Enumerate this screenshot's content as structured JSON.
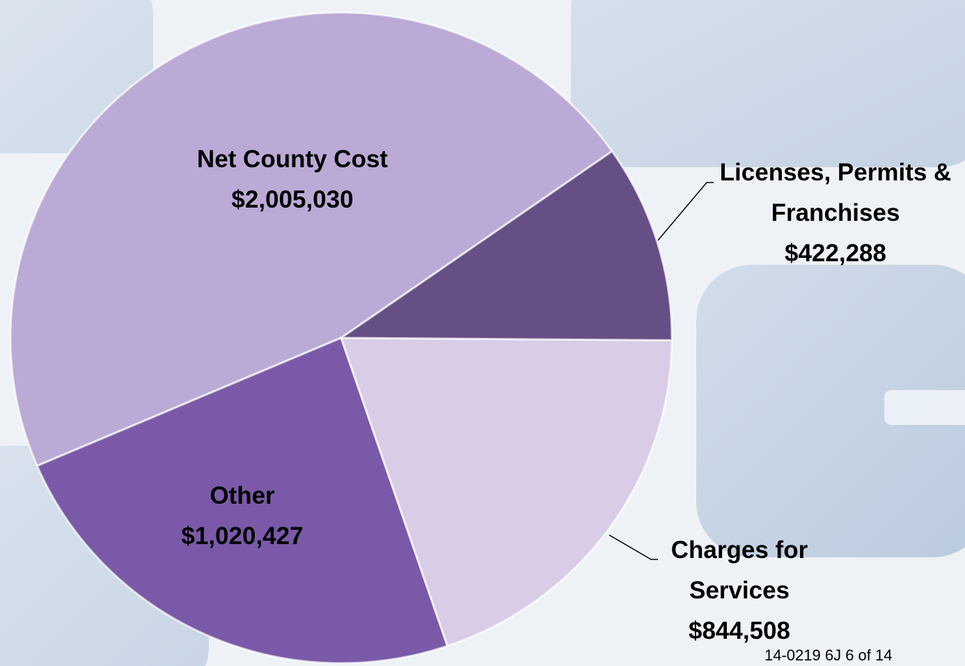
{
  "chart_data": {
    "type": "pie",
    "categories": [
      "Licenses, Permits & Franchises",
      "Charges for Services",
      "Other",
      "Net County Cost"
    ],
    "values": [
      422288,
      844508,
      1020427,
      2005030
    ],
    "value_labels": [
      "$422,288",
      "$844,508",
      "$1,020,427",
      "$2,005,030"
    ],
    "colors": [
      "#664f85",
      "#d8cce6",
      "#7a5aa8",
      "#bcaad6"
    ]
  },
  "footer": "14-0219 6J 6 of 14"
}
